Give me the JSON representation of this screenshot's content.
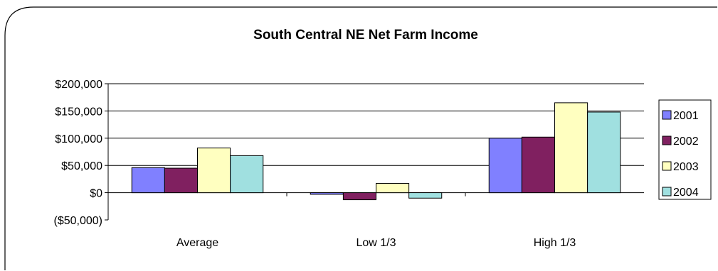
{
  "chart_data": {
    "type": "bar",
    "title": "South Central NE Net Farm Income",
    "categories": [
      "Average",
      "Low 1/3",
      "High 1/3"
    ],
    "series": [
      {
        "name": "2001",
        "color": "#8080ff",
        "values": [
          46000,
          -3000,
          100000
        ]
      },
      {
        "name": "2002",
        "color": "#802060",
        "values": [
          45000,
          -13000,
          102000
        ]
      },
      {
        "name": "2003",
        "color": "#ffffc0",
        "values": [
          82000,
          17000,
          165000
        ]
      },
      {
        "name": "2004",
        "color": "#a0e0e0",
        "values": [
          68000,
          -10000,
          148000
        ]
      }
    ],
    "ylim": [
      -50000,
      200000
    ],
    "yticks": [
      -50000,
      0,
      50000,
      100000,
      150000,
      200000
    ],
    "ytick_labels": [
      "($50,000)",
      "$0",
      "$50,000",
      "$100,000",
      "$150,000",
      "$200,000"
    ],
    "grid": true,
    "legend_position": "right"
  }
}
